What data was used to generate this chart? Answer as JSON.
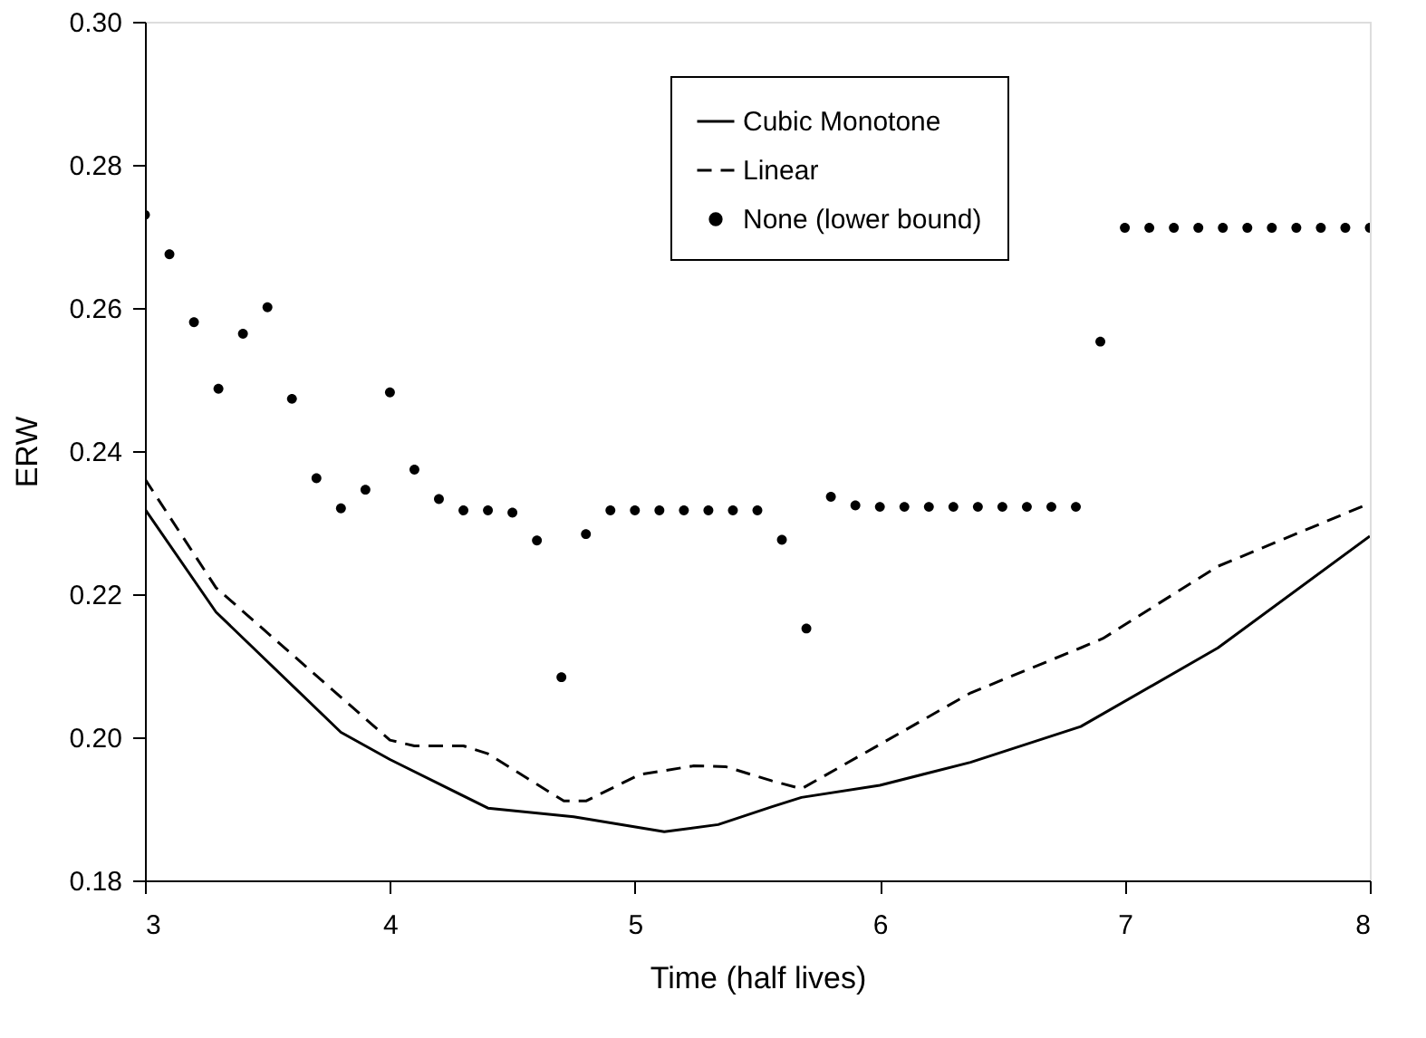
{
  "chart_data": {
    "type": "line",
    "xlabel": "Time (half lives)",
    "ylabel": "ERW",
    "xlim": [
      3,
      8
    ],
    "xticks": [
      3,
      4,
      5,
      6,
      7,
      8
    ],
    "ylim": [
      0.18,
      0.3
    ],
    "yticks": [
      0.18,
      {
        "value": 0.2,
        "label": "0.20"
      },
      0.22,
      0.24,
      0.26,
      0.28,
      {
        "value": 0.3,
        "label": "0.30"
      }
    ],
    "grid": false,
    "legend": "top",
    "series": [
      {
        "name": "Cubic Monotone",
        "line_style": "solid",
        "color": "#000000",
        "x": [
          3,
          3.29,
          3.8,
          4.0,
          4.4,
          4.75,
          5.12,
          5.34,
          5.56,
          5.68,
          6.0,
          6.37,
          6.82,
          7.38,
          8.0
        ],
        "values": [
          0.2319,
          0.2175,
          0.2007,
          0.1969,
          0.1901,
          0.1889,
          0.1868,
          0.1878,
          0.1903,
          0.1916,
          0.1933,
          0.1965,
          0.2015,
          0.2125,
          0.2281
        ]
      },
      {
        "name": "Linear",
        "line_style": "dashed",
        "color": "#000000",
        "x": [
          3,
          3.29,
          3.64,
          4.0,
          4.1,
          4.3,
          4.4,
          4.71,
          4.8,
          5.02,
          5.24,
          5.37,
          5.56,
          5.68,
          6.0,
          6.37,
          6.82,
          6.91,
          7.38,
          8.0
        ],
        "values": [
          0.2361,
          0.2209,
          0.2104,
          0.1996,
          0.1988,
          0.1988,
          0.1977,
          0.1911,
          0.1911,
          0.1948,
          0.196,
          0.1959,
          0.1939,
          0.1928,
          0.199,
          0.2062,
          0.2125,
          0.2138,
          0.2239,
          0.2327
        ]
      },
      {
        "name": "None (lower bound)",
        "type": "scatter",
        "marker": "circle",
        "color": "#000000",
        "x": [
          3.0,
          3.1,
          3.2,
          3.3,
          3.4,
          3.5,
          3.6,
          3.7,
          3.8,
          3.9,
          4.0,
          4.1,
          4.2,
          4.3,
          4.4,
          4.5,
          4.6,
          4.7,
          4.8,
          4.9,
          5.0,
          5.1,
          5.2,
          5.3,
          5.4,
          5.5,
          5.6,
          5.7,
          5.8,
          5.9,
          6.0,
          6.1,
          6.2,
          6.3,
          6.4,
          6.5,
          6.6,
          6.7,
          6.8,
          6.9,
          7.0,
          7.1,
          7.2,
          7.3,
          7.4,
          7.5,
          7.6,
          7.7,
          7.8,
          7.9,
          8.0
        ],
        "values": [
          0.273,
          0.2675,
          0.258,
          0.2487,
          0.2564,
          0.2601,
          0.2473,
          0.2362,
          0.232,
          0.2346,
          0.2482,
          0.2374,
          0.2333,
          0.2317,
          0.2317,
          0.2314,
          0.2275,
          0.2084,
          0.2284,
          0.2317,
          0.2317,
          0.2317,
          0.2317,
          0.2317,
          0.2317,
          0.2317,
          0.2276,
          0.2152,
          0.2336,
          0.2324,
          0.2322,
          0.2322,
          0.2322,
          0.2322,
          0.2322,
          0.2322,
          0.2322,
          0.2322,
          0.2322,
          0.2553,
          0.2712,
          0.2712,
          0.2712,
          0.2712,
          0.2712,
          0.2712,
          0.2712,
          0.2712,
          0.2712,
          0.2712,
          0.2712
        ]
      }
    ]
  }
}
